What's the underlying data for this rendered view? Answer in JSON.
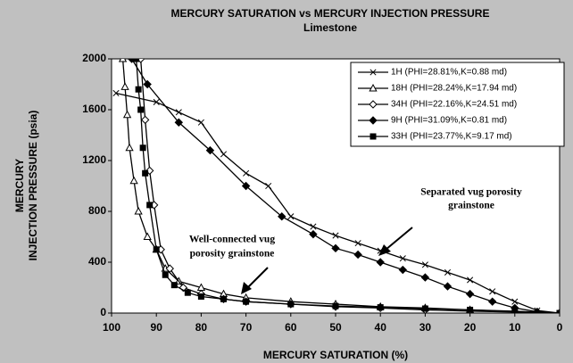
{
  "chart_data": {
    "type": "line",
    "title": "MERCURY SATURATION vs MERCURY INJECTION PRESSURE",
    "subtitle": "Limestone",
    "x_label": "MERCURY SATURATION (%)",
    "y_label": [
      "MERCURY",
      "INJECTION PRESSURE (psia)"
    ],
    "xlim": [
      100,
      0
    ],
    "xticks": [
      100,
      90,
      80,
      70,
      60,
      50,
      40,
      30,
      20,
      10,
      0
    ],
    "ylim": [
      0,
      2000
    ],
    "yticks": [
      0,
      400,
      800,
      1200,
      1600,
      2000
    ],
    "grid": false,
    "legend": "upper right",
    "annotations": [
      [
        "Separated vug porosity",
        "grainstone"
      ],
      [
        "Well-connected vug",
        "porosity grainstone"
      ]
    ],
    "series": [
      {
        "name": "1H (PHI=28.81%,K=0.88 md)",
        "color": "#000000",
        "marker": "x",
        "x": [
          99,
          90,
          85,
          80,
          75,
          70,
          65,
          60,
          55,
          50,
          45,
          40,
          35,
          30,
          25,
          20,
          15,
          10,
          5,
          0
        ],
        "values": [
          1730,
          1660,
          1580,
          1500,
          1250,
          1100,
          1000,
          760,
          680,
          610,
          550,
          490,
          430,
          380,
          320,
          260,
          170,
          90,
          20,
          0
        ]
      },
      {
        "name": "18H (PHI=28.24%,K=17.94 md)",
        "color": "#000000",
        "marker": "triangle",
        "x": [
          97.5,
          97,
          96.5,
          96,
          95,
          94,
          92,
          90,
          88,
          85,
          80,
          75,
          70,
          60,
          50,
          40,
          30,
          20,
          10,
          0
        ],
        "values": [
          2000,
          1780,
          1560,
          1300,
          1040,
          800,
          600,
          500,
          350,
          250,
          200,
          150,
          120,
          90,
          70,
          50,
          40,
          25,
          10,
          0
        ]
      },
      {
        "name": "34H (PHI=22.16%,K=24.51 md)",
        "color": "#000000",
        "marker": "diamond-open",
        "x": [
          93.5,
          92.5,
          91.5,
          90.5,
          89,
          87,
          84,
          80,
          75,
          70,
          60,
          50,
          40,
          30,
          20,
          10,
          0
        ],
        "values": [
          2000,
          1520,
          1120,
          850,
          500,
          350,
          200,
          150,
          110,
          90,
          70,
          50,
          40,
          25,
          15,
          8,
          0
        ]
      },
      {
        "name": "9H (PHI=31.09%,K=0.81 md)",
        "color": "#000000",
        "marker": "diamond",
        "x": [
          95.5,
          92,
          85,
          78,
          70,
          62,
          55,
          50,
          45,
          40,
          35,
          30,
          25,
          20,
          15,
          10,
          5,
          0
        ],
        "values": [
          2000,
          1800,
          1500,
          1280,
          1000,
          760,
          620,
          510,
          460,
          400,
          340,
          280,
          210,
          150,
          90,
          40,
          10,
          0
        ]
      },
      {
        "name": "33H (PHI=23.77%,K=9.17 md)",
        "color": "#000000",
        "marker": "square",
        "x": [
          94.5,
          94,
          93.5,
          93,
          92.5,
          91.5,
          90,
          88,
          86,
          83,
          80,
          75,
          70,
          60,
          50,
          40,
          30,
          20,
          10,
          0
        ],
        "values": [
          2000,
          1760,
          1600,
          1300,
          1100,
          850,
          500,
          300,
          220,
          160,
          130,
          110,
          90,
          70,
          55,
          45,
          35,
          25,
          15,
          0
        ]
      }
    ]
  }
}
